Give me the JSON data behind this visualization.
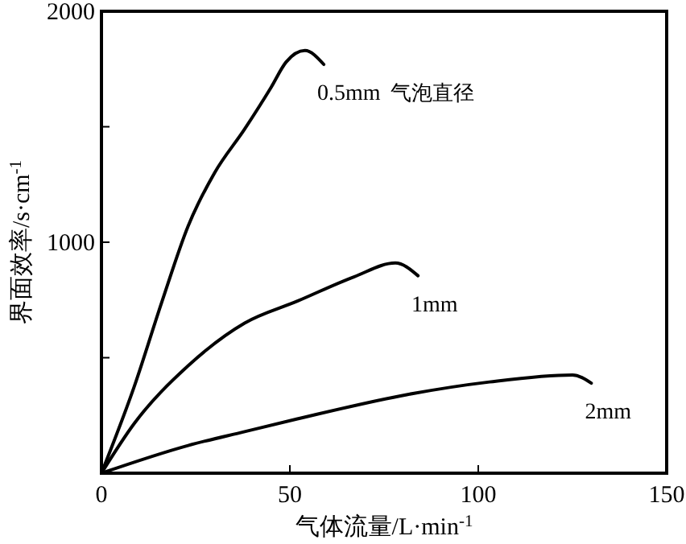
{
  "chart_data": {
    "type": "line",
    "xlabel": "气体流量/L·min$^{-1}$",
    "ylabel": "界面效率/s·cm$^{-1}$",
    "xlim": [
      0,
      150
    ],
    "ylim": [
      0,
      2000
    ],
    "xticks": [
      0,
      50,
      100,
      150
    ],
    "yticks": [
      {
        "value": 0,
        "label": null
      },
      {
        "value": 500,
        "label": null
      },
      1000,
      {
        "value": 1500,
        "label": null
      },
      2000
    ],
    "line_style": "solid",
    "marker": "none",
    "grid": false,
    "annotations": [
      "气泡直径"
    ],
    "series": [
      {
        "name": "0.5mm",
        "color": "#000000",
        "x": [
          0,
          8.7,
          16,
          23,
          30,
          38,
          45,
          49,
          54,
          59
        ],
        "values": [
          0,
          375,
          740,
          1070,
          1300,
          1490,
          1670,
          1780,
          1830,
          1770
        ]
      },
      {
        "name": "1mm",
        "color": "#000000",
        "x": [
          0,
          8.7,
          23,
          38,
          52,
          67,
          78,
          84
        ],
        "values": [
          0,
          215,
          465,
          650,
          745,
          850,
          910,
          855
        ]
      },
      {
        "name": "2mm",
        "color": "#000000",
        "x": [
          0,
          23,
          38,
          52,
          81,
          103,
          125,
          130
        ],
        "values": [
          0,
          120,
          180,
          235,
          340,
          395,
          425,
          390
        ]
      }
    ]
  }
}
